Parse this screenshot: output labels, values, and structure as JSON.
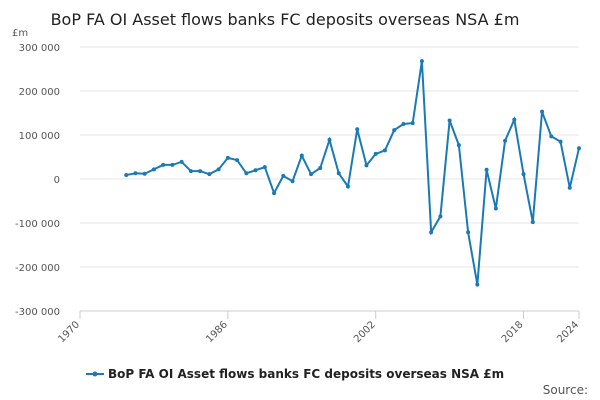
{
  "chart_data": {
    "type": "line",
    "title": "BoP FA OI Asset flows banks FC deposits overseas NSA £m",
    "y_unit": "£m",
    "source": "Source:",
    "x": [
      1975,
      1976,
      1977,
      1978,
      1979,
      1980,
      1981,
      1982,
      1983,
      1984,
      1985,
      1986,
      1987,
      1988,
      1989,
      1990,
      1991,
      1992,
      1993,
      1994,
      1995,
      1996,
      1997,
      1998,
      1999,
      2000,
      2001,
      2002,
      2003,
      2004,
      2005,
      2006,
      2007,
      2008,
      2009,
      2010,
      2011,
      2012,
      2013,
      2014,
      2015,
      2016,
      2017,
      2018,
      2019,
      2020,
      2021,
      2022,
      2023,
      2024
    ],
    "series": [
      {
        "name": "BoP FA OI Asset flows banks FC deposits overseas NSA £m",
        "color": "#1a7ab5",
        "values": [
          9000,
          13000,
          12000,
          22000,
          32000,
          32000,
          39000,
          18000,
          18000,
          11000,
          22000,
          48000,
          43000,
          13000,
          20000,
          27000,
          -32000,
          7000,
          -5000,
          53000,
          11000,
          25000,
          89000,
          13000,
          -17000,
          113000,
          31000,
          57000,
          65000,
          111000,
          125000,
          127000,
          268000,
          -121000,
          -85000,
          133000,
          77000,
          -121000,
          -240000,
          21000,
          -67000,
          87000,
          135000,
          11000,
          -98000,
          153000,
          97000,
          85000,
          -20000,
          70000
        ]
      }
    ],
    "xlim": [
      1970,
      2024
    ],
    "xticks": [
      1970,
      1986,
      2002,
      2018,
      2024
    ],
    "ylim": [
      -300000,
      300000
    ],
    "yticks": [
      {
        "value": -300000,
        "label": "-300 000"
      },
      {
        "value": -200000,
        "label": "-200 000"
      },
      {
        "value": -100000,
        "label": "-100 000"
      },
      0,
      {
        "value": 100000,
        "label": "100 000"
      },
      {
        "value": 200000,
        "label": "200 000"
      },
      {
        "value": 300000,
        "label": "300 000"
      }
    ],
    "grid": true
  }
}
